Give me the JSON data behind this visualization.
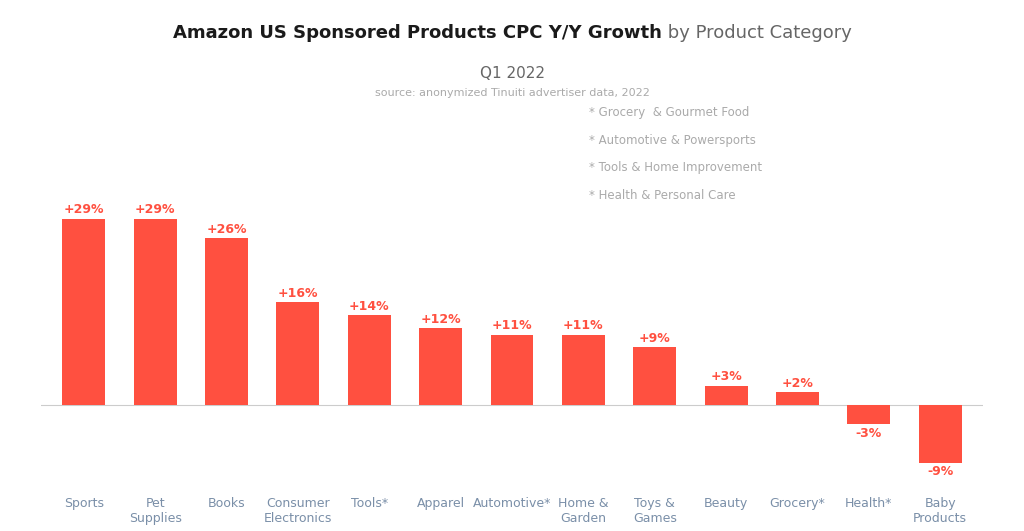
{
  "categories": [
    "Sports",
    "Pet\nSupplies",
    "Books",
    "Consumer\nElectronics",
    "Tools*",
    "Apparel",
    "Automotive*",
    "Home &\nGarden",
    "Toys &\nGames",
    "Beauty",
    "Grocery*",
    "Health*",
    "Baby\nProducts"
  ],
  "values": [
    29,
    29,
    26,
    16,
    14,
    12,
    11,
    11,
    9,
    3,
    2,
    -3,
    -9
  ],
  "bar_color": "#FF5040",
  "title_bold": "Amazon US Sponsored Products CPC Y/Y Growth",
  "title_normal": " by Product Category",
  "subtitle": "Q1 2022",
  "source_text": "source: anonymized Tinuiti advertiser data, 2022",
  "footnotes": [
    "* Grocery  & Gourmet Food",
    "* Automotive & Powersports",
    "* Tools & Home Improvement",
    "* Health & Personal Care"
  ],
  "background_color": "#ffffff",
  "bar_label_color": "#FF5040",
  "title_color": "#1a1a1a",
  "subtitle_color": "#666666",
  "source_color": "#aaaaaa",
  "footnote_color": "#aaaaaa",
  "xticklabel_color": "#7a8fa8",
  "ylim_min": -13,
  "ylim_max": 35
}
